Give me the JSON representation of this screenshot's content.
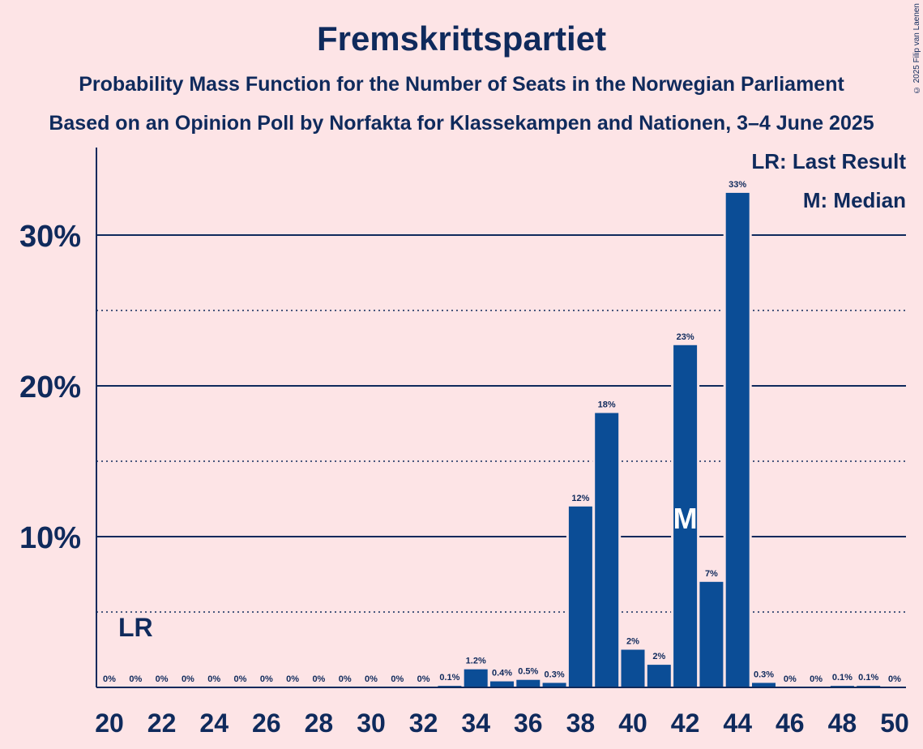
{
  "title": "Fremskrittspartiet",
  "subtitle1": "Probability Mass Function for the Number of Seats in the Norwegian Parliament",
  "subtitle2": "Based on an Opinion Poll by Norfakta for Klassekampen and Nationen, 3–4 June 2025",
  "copyright": "© 2025 Filip van Laenen",
  "legend": {
    "last_result": "LR: Last Result",
    "median": "M: Median"
  },
  "colors": {
    "background": "#fde4e6",
    "bar": "#0b4d96",
    "text": "#0f2a5c"
  },
  "chart_data": {
    "type": "bar",
    "x": [
      20,
      21,
      22,
      23,
      24,
      25,
      26,
      27,
      28,
      29,
      30,
      31,
      32,
      33,
      34,
      35,
      36,
      37,
      38,
      39,
      40,
      41,
      42,
      43,
      44,
      45,
      46,
      47,
      48,
      49,
      50
    ],
    "values": [
      0,
      0,
      0,
      0,
      0,
      0,
      0,
      0,
      0,
      0,
      0,
      0,
      0,
      0.1,
      1.2,
      0.4,
      0.5,
      0.3,
      12,
      18.2,
      2.5,
      1.5,
      22.7,
      7,
      32.8,
      0.3,
      0,
      0,
      0.1,
      0.1,
      0
    ],
    "data_labels": [
      "0%",
      "0%",
      "0%",
      "0%",
      "0%",
      "0%",
      "0%",
      "0%",
      "0%",
      "0%",
      "0%",
      "0%",
      "0%",
      "0.1%",
      "1.2%",
      "0.4%",
      "0.5%",
      "0.3%",
      "12%",
      "18%",
      "2%",
      "2%",
      "23%",
      "7%",
      "33%",
      "0.3%",
      "0%",
      "0%",
      "0.1%",
      "0.1%",
      "0%"
    ],
    "x_ticks": [
      "20",
      "22",
      "24",
      "26",
      "28",
      "30",
      "32",
      "34",
      "36",
      "38",
      "40",
      "42",
      "44",
      "46",
      "48",
      "50"
    ],
    "y_ticks": [
      "10%",
      "20%",
      "30%"
    ],
    "y_tick_values": [
      10,
      20,
      30
    ],
    "y_minor_values": [
      5,
      15,
      25
    ],
    "ylim": [
      0,
      36
    ],
    "last_result_seat": 21,
    "last_result_label": "LR",
    "median_seat": 42,
    "median_label": "M",
    "grid": true
  }
}
